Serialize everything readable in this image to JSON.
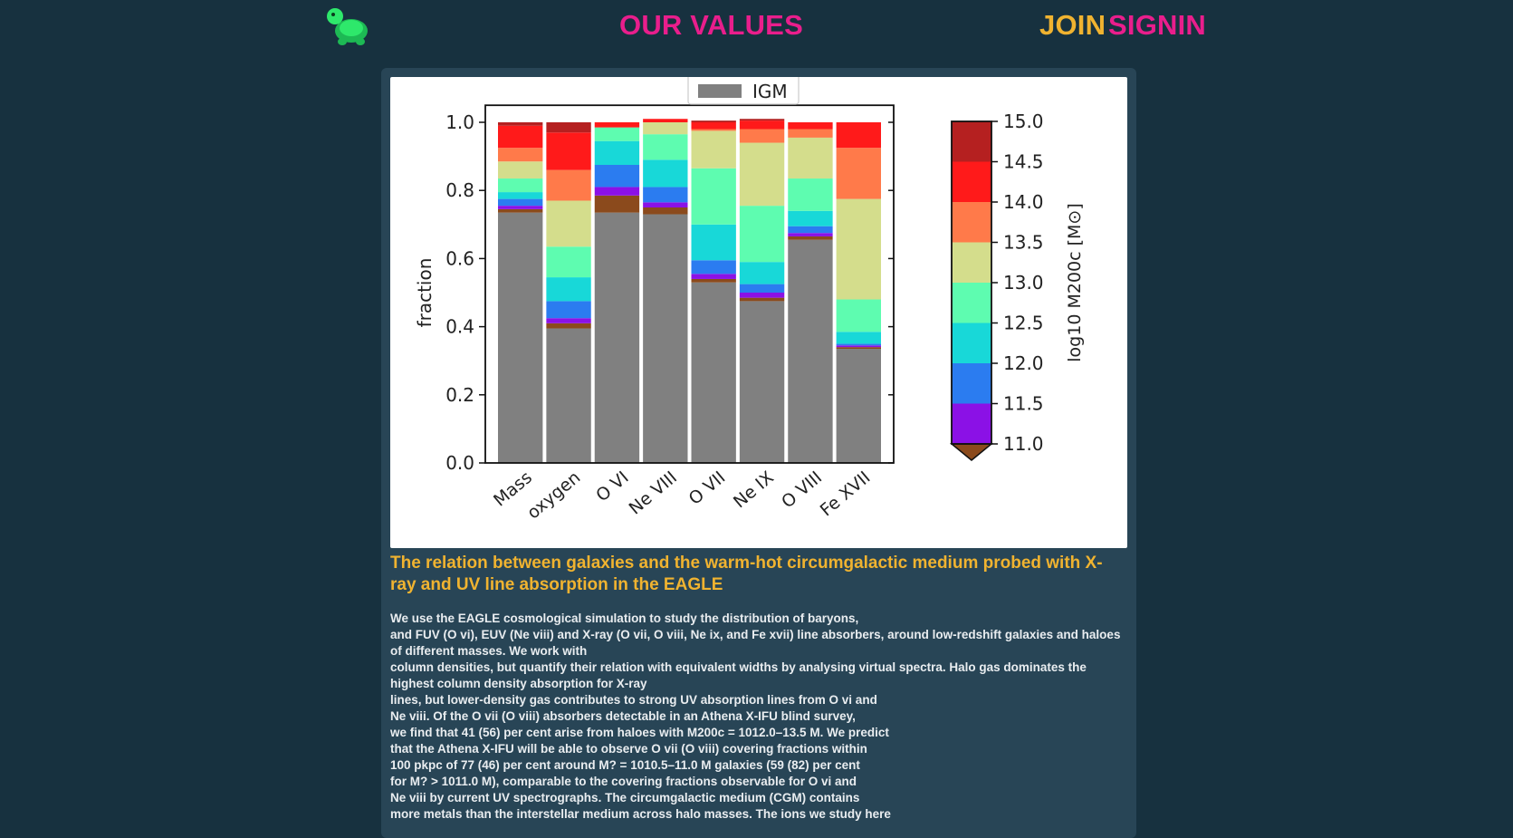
{
  "nav": {
    "values_label": "OUR VALUES",
    "join_label": "JOIN",
    "signin_label": "SIGNIN",
    "logo_icon": "turtle-icon"
  },
  "colors": {
    "background": "#17313f",
    "card": "#284556",
    "pink": "#e91e8c",
    "gold": "#f0b330"
  },
  "chart_data": {
    "type": "bar",
    "stacked": true,
    "ylabel": "fraction",
    "ylim": [
      0,
      1
    ],
    "yticks": [
      "0.0",
      "0.2",
      "0.4",
      "0.6",
      "0.8",
      "1.0"
    ],
    "categories": [
      "Mass",
      "oxygen",
      "O VI",
      "Ne VIII",
      "O VII",
      "Ne IX",
      "O VIII",
      "Fe XVII"
    ],
    "legend": {
      "labels": [
        "IGM"
      ],
      "position": "top-center"
    },
    "series": [
      {
        "name": "IGM",
        "color": "#808080",
        "values": [
          0.735,
          0.395,
          0.735,
          0.73,
          0.53,
          0.475,
          0.655,
          0.335
        ]
      },
      {
        "color": "#8b4a1c",
        "values": [
          0.01,
          0.015,
          0.05,
          0.02,
          0.01,
          0.01,
          0.01,
          0.005
        ]
      },
      {
        "color": "#8b11e6",
        "values": [
          0.01,
          0.015,
          0.025,
          0.015,
          0.015,
          0.015,
          0.01,
          0.005
        ]
      },
      {
        "color": "#2b7cf0",
        "values": [
          0.02,
          0.05,
          0.065,
          0.045,
          0.04,
          0.025,
          0.02,
          0.005
        ]
      },
      {
        "color": "#18d8d8",
        "values": [
          0.02,
          0.07,
          0.07,
          0.08,
          0.105,
          0.065,
          0.045,
          0.035
        ]
      },
      {
        "color": "#5efcb0",
        "values": [
          0.04,
          0.09,
          0.04,
          0.075,
          0.165,
          0.165,
          0.095,
          0.095
        ]
      },
      {
        "color": "#d4dd8c",
        "values": [
          0.05,
          0.135,
          0.0,
          0.035,
          0.11,
          0.185,
          0.12,
          0.295
        ]
      },
      {
        "color": "#ff7a4a",
        "values": [
          0.04,
          0.09,
          0.0,
          0.0,
          0.005,
          0.04,
          0.025,
          0.15
        ]
      },
      {
        "color": "#ff1a1a",
        "values": [
          0.065,
          0.11,
          0.015,
          0.01,
          0.02,
          0.025,
          0.02,
          0.075
        ]
      },
      {
        "color": "#b52020",
        "values": [
          0.01,
          0.03,
          0.0,
          0.0,
          0.005,
          0.005,
          0.0,
          0.0
        ]
      }
    ],
    "colorbar": {
      "label": "log10 M200c [M⊙]",
      "ticks": [
        "11.0",
        "11.5",
        "12.0",
        "12.5",
        "13.0",
        "13.5",
        "14.0",
        "14.5",
        "15.0"
      ],
      "colors": [
        "#8b11e6",
        "#2b7cf0",
        "#18d8d8",
        "#5efcb0",
        "#d4dd8c",
        "#ff7a4a",
        "#ff1a1a",
        "#b52020"
      ],
      "extend_color": "#8b4a1c"
    }
  },
  "paper": {
    "title": "The relation between galaxies and the warm-hot circumgalactic medium probed with X-ray and UV line absorption in the EAGLE",
    "abstract_lines": [
      "We use the EAGLE cosmological simulation to study the distribution of baryons,",
      "and FUV (O vi), EUV (Ne viii) and X-ray (O vii, O viii, Ne ix, and Fe xvii) line absorbers, around low-redshift galaxies and haloes of different masses. We work with",
      "column densities, but quantify their relation with equivalent widths by analysing virtual spectra. Halo gas dominates the highest column density absorption for X-ray",
      "lines, but lower-density gas contributes to strong UV absorption lines from O vi and",
      "Ne viii. Of the O vii (O viii) absorbers detectable in an Athena X-IFU blind survey,",
      "we find that 41 (56) per cent arise from haloes with M200c = 1012.0–13.5 M. We predict",
      "that the Athena X-IFU will be able to observe O vii (O viii) covering fractions within",
      "100 pkpc of 77 (46) per cent around M? = 1010.5–11.0 M galaxies (59 (82) per cent",
      "for M? > 1011.0 M), comparable to the covering fractions observable for O vi and",
      "Ne viii by current UV spectrographs. The circumgalactic medium (CGM) contains",
      "more metals than the interstellar medium across halo masses. The ions we study here"
    ]
  }
}
